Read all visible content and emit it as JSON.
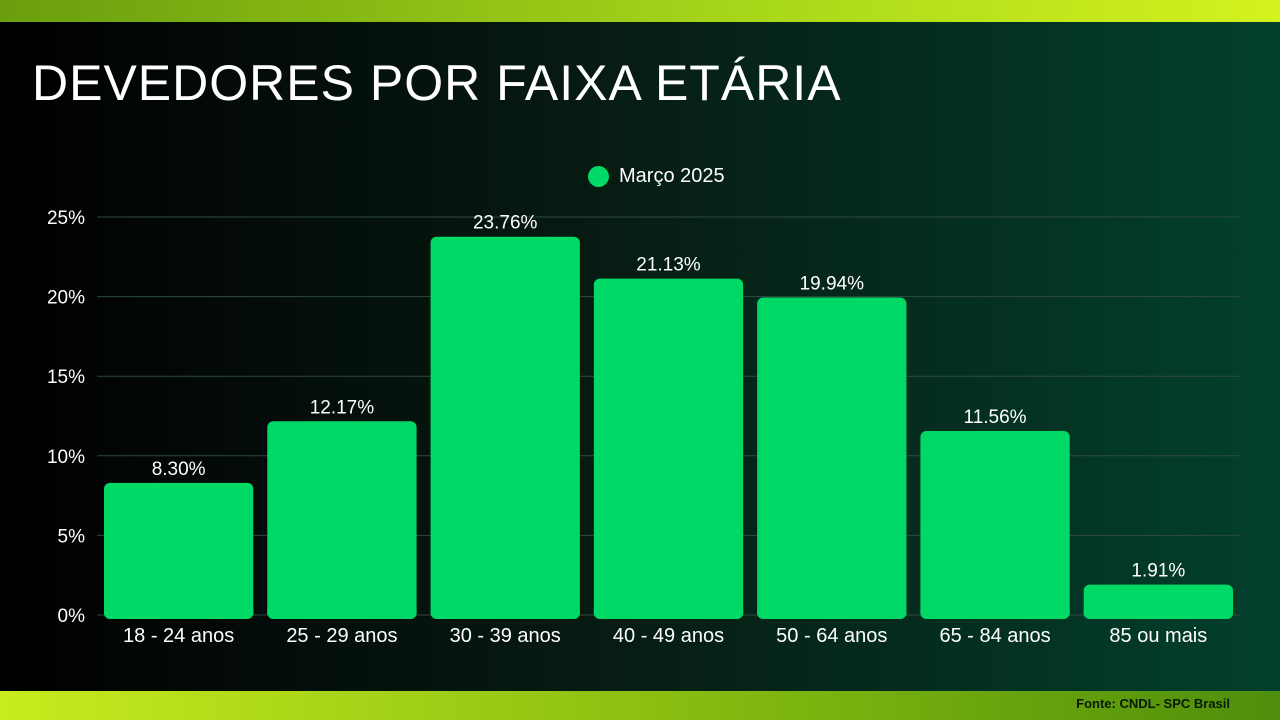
{
  "title": "DEVEDORES POR FAIXA ETÁRIA",
  "source": "Fonte: CNDL- SPC Brasil",
  "colors": {
    "bar": "#00d966",
    "grid": "#2e4a3e",
    "text": "#ffffff"
  },
  "chart_data": {
    "type": "bar",
    "title": "DEVEDORES POR FAIXA ETÁRIA",
    "categories": [
      "18 - 24 anos",
      "25 - 29 anos",
      "30 - 39 anos",
      "40 - 49 anos",
      "50 - 64 anos",
      "65 - 84 anos",
      "85 ou mais"
    ],
    "series": [
      {
        "name": "Março 2025",
        "values": [
          8.3,
          12.17,
          23.76,
          21.13,
          19.94,
          11.56,
          1.91
        ],
        "labels": [
          "8.30%",
          "12.17%",
          "23.76%",
          "21.13%",
          "19.94%",
          "11.56%",
          "1.91%"
        ]
      }
    ],
    "yticks": [
      "0%",
      "5%",
      "10%",
      "15%",
      "20%",
      "25%"
    ],
    "ylim": [
      0,
      25
    ],
    "grid": true,
    "legend_position": "top-center"
  }
}
